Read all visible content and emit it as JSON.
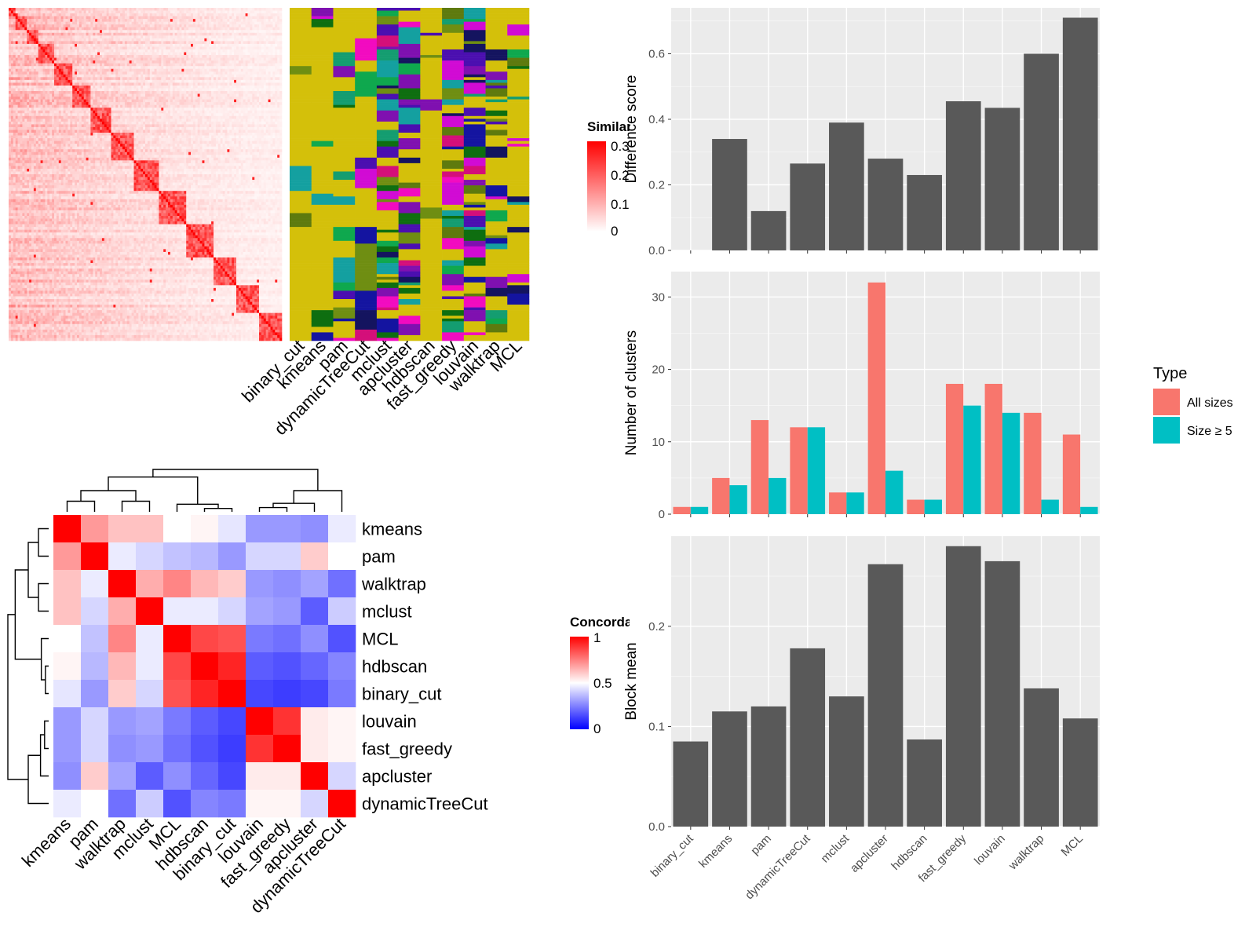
{
  "methods": [
    "binary_cut",
    "kmeans",
    "pam",
    "dynamicTreeCut",
    "mclust",
    "apcluster",
    "hdbscan",
    "fast_greedy",
    "louvain",
    "walktrap",
    "MCL"
  ],
  "similarity_legend": {
    "title": "Similarity",
    "ticks": [
      "0",
      "0.1",
      "0.2",
      "0.3"
    ]
  },
  "concordance_legend": {
    "title": "Concordance",
    "ticks": [
      "0",
      "0.5",
      "1"
    ]
  },
  "type_legend": {
    "title": "Type",
    "all_label": "All sizes",
    "size_label": "Size ≥ 5",
    "all_color": "#F8766D",
    "size_color": "#00BFC4"
  },
  "chart_data": [
    {
      "type": "heatmap",
      "name": "similarity",
      "description": "term similarity matrix with diagonal blocks",
      "color_range": [
        0,
        0.3
      ],
      "colors": [
        "#ffffff",
        "#ff0000"
      ],
      "n_terms": 120
    },
    {
      "type": "heatmap",
      "name": "cluster_membership",
      "columns": [
        "binary_cut",
        "kmeans",
        "pam",
        "dynamicTreeCut",
        "mclust",
        "apcluster",
        "hdbscan",
        "fast_greedy",
        "louvain",
        "walktrap",
        "MCL"
      ],
      "palette": [
        "#D4C00A",
        "#0FA84E",
        "#149D70",
        "#6F8E12",
        "#5E7A0E",
        "#14145F",
        "#4B0FB0",
        "#D10BD4",
        "#F20BC0",
        "#D40F7A",
        "#14A0A0",
        "#1414A0",
        "#7F10B0",
        "#0E6E10"
      ]
    },
    {
      "type": "heatmap",
      "name": "concordance",
      "rows": [
        "kmeans",
        "pam",
        "walktrap",
        "mclust",
        "MCL",
        "hdbscan",
        "binary_cut",
        "louvain",
        "fast_greedy",
        "apcluster",
        "dynamicTreeCut"
      ],
      "columns": [
        "kmeans",
        "pam",
        "walktrap",
        "mclust",
        "MCL",
        "hdbscan",
        "binary_cut",
        "louvain",
        "fast_greedy",
        "apcluster",
        "dynamicTreeCut"
      ],
      "color_range": [
        0,
        1
      ],
      "values": [
        [
          1.0,
          0.7,
          0.62,
          0.62,
          0.5,
          0.52,
          0.45,
          0.3,
          0.3,
          0.28,
          0.46
        ],
        [
          0.7,
          1.0,
          0.46,
          0.42,
          0.38,
          0.36,
          0.3,
          0.42,
          0.42,
          0.6,
          0.5
        ],
        [
          0.62,
          0.46,
          1.0,
          0.66,
          0.74,
          0.64,
          0.6,
          0.3,
          0.28,
          0.32,
          0.22
        ],
        [
          0.62,
          0.42,
          0.66,
          1.0,
          0.46,
          0.46,
          0.42,
          0.32,
          0.3,
          0.18,
          0.4
        ],
        [
          0.5,
          0.38,
          0.74,
          0.46,
          1.0,
          0.86,
          0.84,
          0.24,
          0.22,
          0.28,
          0.16
        ],
        [
          0.52,
          0.36,
          0.64,
          0.46,
          0.86,
          1.0,
          0.93,
          0.18,
          0.16,
          0.2,
          0.26
        ],
        [
          0.45,
          0.3,
          0.6,
          0.42,
          0.84,
          0.93,
          1.0,
          0.14,
          0.12,
          0.14,
          0.24
        ],
        [
          0.3,
          0.42,
          0.3,
          0.32,
          0.24,
          0.18,
          0.14,
          1.0,
          0.9,
          0.54,
          0.52
        ],
        [
          0.3,
          0.42,
          0.28,
          0.3,
          0.22,
          0.16,
          0.12,
          0.9,
          1.0,
          0.54,
          0.52
        ],
        [
          0.28,
          0.6,
          0.32,
          0.18,
          0.28,
          0.2,
          0.14,
          0.54,
          0.54,
          1.0,
          0.42
        ],
        [
          0.46,
          0.5,
          0.22,
          0.4,
          0.16,
          0.26,
          0.24,
          0.52,
          0.52,
          0.42,
          1.0
        ]
      ]
    },
    {
      "type": "bar",
      "name": "difference_score",
      "ylabel": "Difference score",
      "categories": [
        "binary_cut",
        "kmeans",
        "pam",
        "dynamicTreeCut",
        "mclust",
        "apcluster",
        "hdbscan",
        "fast_greedy",
        "louvain",
        "walktrap",
        "MCL"
      ],
      "values": [
        0,
        0.34,
        0.12,
        0.265,
        0.39,
        0.28,
        0.23,
        0.455,
        0.435,
        0.6,
        0.71
      ],
      "ylim": [
        0,
        0.74
      ],
      "yticks": [
        "0.0",
        "0.2",
        "0.4",
        "0.6"
      ],
      "bar_color": "#595959"
    },
    {
      "type": "bar",
      "name": "number_of_clusters",
      "ylabel": "Number of clusters",
      "categories": [
        "binary_cut",
        "kmeans",
        "pam",
        "dynamicTreeCut",
        "mclust",
        "apcluster",
        "hdbscan",
        "fast_greedy",
        "louvain",
        "walktrap",
        "MCL"
      ],
      "series": [
        {
          "name": "All sizes",
          "values": [
            1,
            5,
            13,
            12,
            3,
            32,
            2,
            18,
            18,
            14,
            11
          ]
        },
        {
          "name": "Size ≥ 5",
          "values": [
            1,
            4,
            5,
            12,
            3,
            6,
            2,
            15,
            14,
            2,
            1
          ]
        }
      ],
      "ylim": [
        0,
        33.5
      ],
      "yticks": [
        "0",
        "10",
        "20",
        "30"
      ]
    },
    {
      "type": "bar",
      "name": "block_mean",
      "ylabel": "Block mean",
      "categories": [
        "binary_cut",
        "kmeans",
        "pam",
        "dynamicTreeCut",
        "mclust",
        "apcluster",
        "hdbscan",
        "fast_greedy",
        "louvain",
        "walktrap",
        "MCL"
      ],
      "values": [
        0.085,
        0.115,
        0.12,
        0.178,
        0.13,
        0.262,
        0.087,
        0.28,
        0.265,
        0.138,
        0.108
      ],
      "ylim": [
        0,
        0.29
      ],
      "yticks": [
        "0.0",
        "0.1",
        "0.2"
      ],
      "bar_color": "#595959"
    }
  ]
}
